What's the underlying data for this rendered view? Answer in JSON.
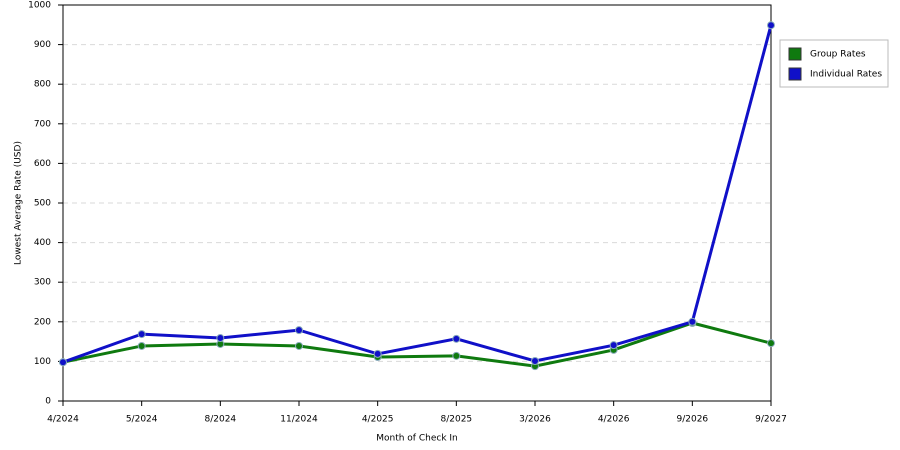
{
  "chart_data": {
    "type": "line",
    "x_label": "Month of Check In",
    "y_label": "Lowest Average Rate (USD)",
    "categories": [
      "4/2024",
      "5/2024",
      "8/2024",
      "11/2024",
      "4/2025",
      "8/2025",
      "3/2026",
      "4/2026",
      "9/2026",
      "9/2027"
    ],
    "series": [
      {
        "name": "Group Rates",
        "color": "#0f7a0f",
        "values": [
          98,
          139,
          144,
          139,
          111,
          114,
          88,
          129,
          197,
          146
        ]
      },
      {
        "name": "Individual Rates",
        "color": "#1010c8",
        "values": [
          98,
          169,
          159,
          179,
          119,
          157,
          101,
          141,
          200,
          949
        ]
      }
    ],
    "ylim": [
      0,
      1000
    ],
    "yticks": [
      0,
      100,
      200,
      300,
      400,
      500,
      600,
      700,
      800,
      900,
      1000
    ],
    "grid": true,
    "legend": "right"
  }
}
